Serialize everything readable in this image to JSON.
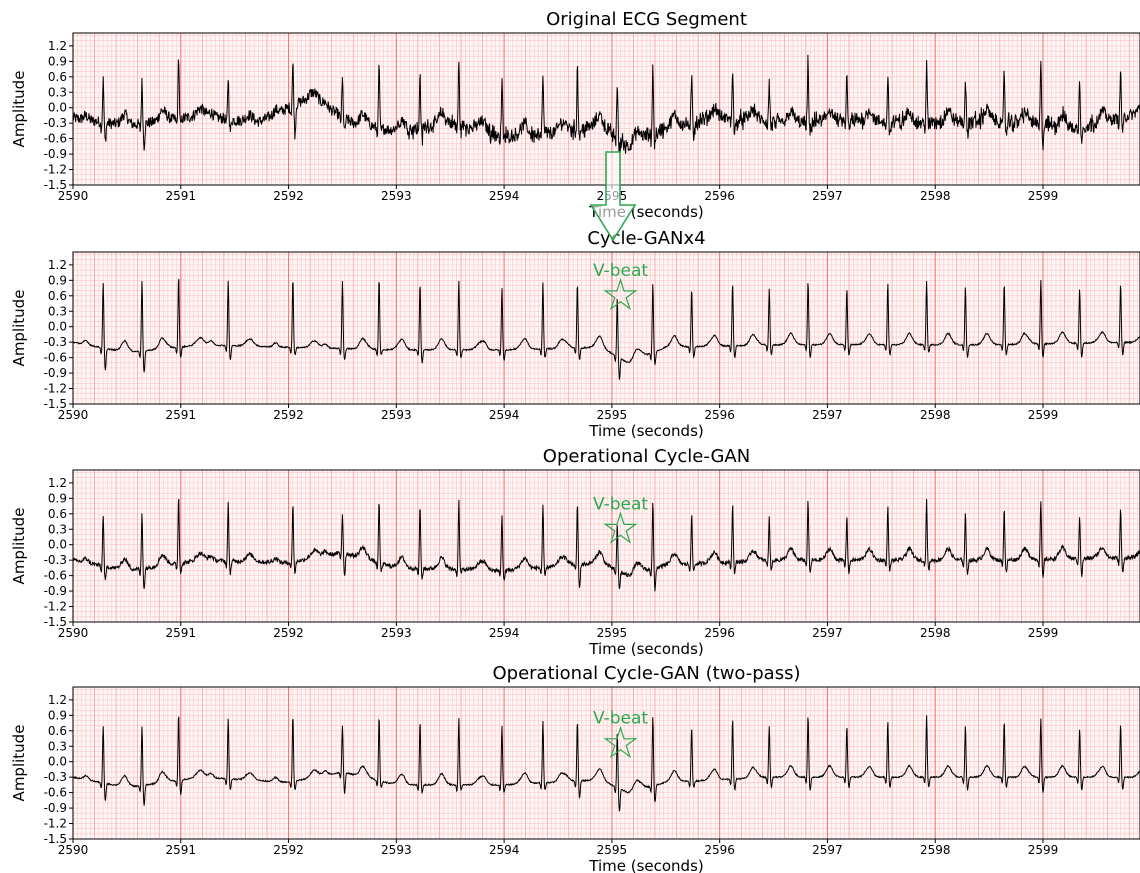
{
  "chart_data": [
    {
      "type": "line",
      "title": "Original ECG Segment",
      "xlabel": "Time (seconds)",
      "ylabel": "Amplitude",
      "xlim": [
        2590,
        2599.9
      ],
      "ylim": [
        -1.5,
        1.45
      ],
      "xticks": [
        "2590",
        "2591",
        "2592",
        "2593",
        "2594",
        "2595",
        "2596",
        "2597",
        "2598",
        "2599"
      ],
      "yticks": [
        "1.2",
        "0.9",
        "0.6",
        "0.3",
        "0.0",
        "-0.3",
        "-0.6",
        "-0.9",
        "-1.2",
        "-1.5"
      ],
      "grid": "ecg-paper",
      "noise": "high",
      "beats": [
        {
          "t": 2590.28,
          "r": 0.55,
          "s": -0.65
        },
        {
          "t": 2590.64,
          "r": 0.5,
          "s": -0.75
        },
        {
          "t": 2590.98,
          "r": 1.0,
          "s": -0.35
        },
        {
          "t": 2591.44,
          "r": 0.6,
          "s": -0.45
        },
        {
          "t": 2592.04,
          "r": 0.85,
          "s": -0.55
        },
        {
          "t": 2592.5,
          "r": 0.55,
          "s": -0.45
        },
        {
          "t": 2592.84,
          "r": 0.85,
          "s": -0.45
        },
        {
          "t": 2593.22,
          "r": 0.7,
          "s": -0.6
        },
        {
          "t": 2593.58,
          "r": 0.85,
          "s": -0.4
        },
        {
          "t": 2593.98,
          "r": 0.55,
          "s": -0.6
        },
        {
          "t": 2594.36,
          "r": 0.7,
          "s": -0.5
        },
        {
          "t": 2594.68,
          "r": 0.85,
          "s": -0.55
        },
        {
          "t": 2595.05,
          "r": 0.55,
          "s": -0.8
        },
        {
          "t": 2595.38,
          "r": 0.85,
          "s": -0.7
        },
        {
          "t": 2595.74,
          "r": 0.55,
          "s": -0.55
        },
        {
          "t": 2596.12,
          "r": 0.85,
          "s": -0.55
        },
        {
          "t": 2596.46,
          "r": 0.5,
          "s": -0.4
        },
        {
          "t": 2596.82,
          "r": 0.85,
          "s": -0.55
        },
        {
          "t": 2597.18,
          "r": 0.55,
          "s": -0.45
        },
        {
          "t": 2597.56,
          "r": 0.7,
          "s": -0.5
        },
        {
          "t": 2597.92,
          "r": 0.85,
          "s": -0.4
        },
        {
          "t": 2598.28,
          "r": 0.55,
          "s": -0.6
        },
        {
          "t": 2598.64,
          "r": 0.7,
          "s": -0.5
        },
        {
          "t": 2598.98,
          "r": 0.85,
          "s": -0.7
        },
        {
          "t": 2599.34,
          "r": 0.55,
          "s": -0.65
        },
        {
          "t": 2599.72,
          "r": 0.7,
          "s": -0.5
        }
      ],
      "baseline": [
        [
          2590,
          -0.2
        ],
        [
          2590.5,
          -0.35
        ],
        [
          2591.2,
          -0.15
        ],
        [
          2591.7,
          -0.3
        ],
        [
          2592.2,
          0.2
        ],
        [
          2592.6,
          -0.3
        ],
        [
          2593,
          -0.45
        ],
        [
          2593.5,
          -0.3
        ],
        [
          2594,
          -0.55
        ],
        [
          2594.4,
          -0.5
        ],
        [
          2594.9,
          -0.35
        ],
        [
          2595.15,
          -0.75
        ],
        [
          2595.5,
          -0.4
        ],
        [
          2596,
          -0.2
        ],
        [
          2596.6,
          -0.3
        ],
        [
          2597.2,
          -0.25
        ],
        [
          2597.8,
          -0.3
        ],
        [
          2598.4,
          -0.25
        ],
        [
          2598.9,
          -0.3
        ],
        [
          2599.3,
          -0.4
        ],
        [
          2599.9,
          -0.1
        ]
      ]
    },
    {
      "type": "line",
      "title": "Cycle-GANx4",
      "xlabel": "Time (seconds)",
      "ylabel": "Amplitude",
      "xlim": [
        2590,
        2599.9
      ],
      "ylim": [
        -1.5,
        1.45
      ],
      "xticks": [
        "2590",
        "2591",
        "2592",
        "2593",
        "2594",
        "2595",
        "2596",
        "2597",
        "2598",
        "2599"
      ],
      "yticks": [
        "1.2",
        "0.9",
        "0.6",
        "0.3",
        "0.0",
        "-0.3",
        "-0.6",
        "-0.9",
        "-1.2",
        "-1.5"
      ],
      "grid": "ecg-paper",
      "noise": "low",
      "annotation": {
        "label": "V-beat",
        "x": 2595.08,
        "y": 0.6
      },
      "beats": [
        {
          "t": 2590.28,
          "r": 0.85,
          "s": -0.85
        },
        {
          "t": 2590.64,
          "r": 0.9,
          "s": -0.9
        },
        {
          "t": 2590.98,
          "r": 1.0,
          "s": -0.6
        },
        {
          "t": 2591.44,
          "r": 0.9,
          "s": -0.65
        },
        {
          "t": 2592.04,
          "r": 0.95,
          "s": -0.55
        },
        {
          "t": 2592.5,
          "r": 0.9,
          "s": -0.65
        },
        {
          "t": 2592.84,
          "r": 0.95,
          "s": -0.55
        },
        {
          "t": 2593.22,
          "r": 0.85,
          "s": -0.7
        },
        {
          "t": 2593.58,
          "r": 0.9,
          "s": -0.6
        },
        {
          "t": 2593.98,
          "r": 0.75,
          "s": -0.65
        },
        {
          "t": 2594.36,
          "r": 0.85,
          "s": -0.6
        },
        {
          "t": 2594.68,
          "r": 0.85,
          "s": -0.65
        },
        {
          "t": 2595.05,
          "r": 0.55,
          "s": -1.0
        },
        {
          "t": 2595.38,
          "r": 0.85,
          "s": -0.75
        },
        {
          "t": 2595.74,
          "r": 0.75,
          "s": -0.6
        },
        {
          "t": 2596.12,
          "r": 0.85,
          "s": -0.6
        },
        {
          "t": 2596.46,
          "r": 0.75,
          "s": -0.55
        },
        {
          "t": 2596.82,
          "r": 0.9,
          "s": -0.6
        },
        {
          "t": 2597.18,
          "r": 0.75,
          "s": -0.55
        },
        {
          "t": 2597.56,
          "r": 0.85,
          "s": -0.55
        },
        {
          "t": 2597.92,
          "r": 0.9,
          "s": -0.5
        },
        {
          "t": 2598.28,
          "r": 0.8,
          "s": -0.6
        },
        {
          "t": 2598.64,
          "r": 0.85,
          "s": -0.55
        },
        {
          "t": 2598.98,
          "r": 0.9,
          "s": -0.6
        },
        {
          "t": 2599.34,
          "r": 0.75,
          "s": -0.6
        },
        {
          "t": 2599.72,
          "r": 0.85,
          "s": -0.55
        }
      ],
      "baseline": [
        [
          2590,
          -0.3
        ],
        [
          2590.5,
          -0.5
        ],
        [
          2591.2,
          -0.35
        ],
        [
          2592,
          -0.4
        ],
        [
          2593,
          -0.45
        ],
        [
          2594,
          -0.45
        ],
        [
          2594.9,
          -0.4
        ],
        [
          2595.15,
          -0.7
        ],
        [
          2595.5,
          -0.4
        ],
        [
          2596.5,
          -0.35
        ],
        [
          2597.5,
          -0.35
        ],
        [
          2598.5,
          -0.35
        ],
        [
          2599.9,
          -0.3
        ]
      ]
    },
    {
      "type": "line",
      "title": "Operational Cycle-GAN",
      "xlabel": "Time (seconds)",
      "ylabel": "Amplitude",
      "xlim": [
        2590,
        2599.9
      ],
      "ylim": [
        -1.5,
        1.45
      ],
      "xticks": [
        "2590",
        "2591",
        "2592",
        "2593",
        "2594",
        "2595",
        "2596",
        "2597",
        "2598",
        "2599"
      ],
      "yticks": [
        "1.2",
        "0.9",
        "0.6",
        "0.3",
        "0.0",
        "-0.3",
        "-0.6",
        "-0.9",
        "-1.2",
        "-1.5"
      ],
      "grid": "ecg-paper",
      "noise": "medium",
      "annotation": {
        "label": "V-beat",
        "x": 2595.08,
        "y": 0.3
      },
      "beats": [
        {
          "t": 2590.28,
          "r": 0.6,
          "s": -0.7
        },
        {
          "t": 2590.64,
          "r": 0.6,
          "s": -0.85
        },
        {
          "t": 2590.98,
          "r": 0.95,
          "s": -0.55
        },
        {
          "t": 2591.44,
          "r": 0.8,
          "s": -0.55
        },
        {
          "t": 2592.04,
          "r": 0.8,
          "s": -0.55
        },
        {
          "t": 2592.5,
          "r": 0.6,
          "s": -0.6
        },
        {
          "t": 2592.84,
          "r": 0.85,
          "s": -0.5
        },
        {
          "t": 2593.22,
          "r": 0.75,
          "s": -0.65
        },
        {
          "t": 2593.58,
          "r": 0.85,
          "s": -0.55
        },
        {
          "t": 2593.98,
          "r": 0.6,
          "s": -0.7
        },
        {
          "t": 2594.36,
          "r": 0.75,
          "s": -0.6
        },
        {
          "t": 2594.68,
          "r": 0.8,
          "s": -0.85
        },
        {
          "t": 2595.05,
          "r": 0.4,
          "s": -0.85
        },
        {
          "t": 2595.38,
          "r": 0.85,
          "s": -0.9
        },
        {
          "t": 2595.74,
          "r": 0.6,
          "s": -0.5
        },
        {
          "t": 2596.12,
          "r": 0.8,
          "s": -0.55
        },
        {
          "t": 2596.46,
          "r": 0.55,
          "s": -0.5
        },
        {
          "t": 2596.82,
          "r": 0.85,
          "s": -0.55
        },
        {
          "t": 2597.18,
          "r": 0.55,
          "s": -0.55
        },
        {
          "t": 2597.56,
          "r": 0.75,
          "s": -0.5
        },
        {
          "t": 2597.92,
          "r": 0.85,
          "s": -0.5
        },
        {
          "t": 2598.28,
          "r": 0.6,
          "s": -0.55
        },
        {
          "t": 2598.64,
          "r": 0.7,
          "s": -0.55
        },
        {
          "t": 2598.98,
          "r": 0.85,
          "s": -0.65
        },
        {
          "t": 2599.34,
          "r": 0.55,
          "s": -0.6
        },
        {
          "t": 2599.72,
          "r": 0.7,
          "s": -0.55
        }
      ],
      "baseline": [
        [
          2590,
          -0.3
        ],
        [
          2590.5,
          -0.5
        ],
        [
          2591.2,
          -0.3
        ],
        [
          2592,
          -0.35
        ],
        [
          2592.5,
          -0.15
        ],
        [
          2593,
          -0.45
        ],
        [
          2594,
          -0.5
        ],
        [
          2594.9,
          -0.35
        ],
        [
          2595.15,
          -0.6
        ],
        [
          2595.5,
          -0.4
        ],
        [
          2596.5,
          -0.3
        ],
        [
          2597.5,
          -0.3
        ],
        [
          2598.5,
          -0.3
        ],
        [
          2599.9,
          -0.25
        ]
      ]
    },
    {
      "type": "line",
      "title": "Operational Cycle-GAN (two-pass)",
      "xlabel": "Time (seconds)",
      "ylabel": "Amplitude",
      "xlim": [
        2590,
        2599.9
      ],
      "ylim": [
        -1.5,
        1.45
      ],
      "xticks": [
        "2590",
        "2591",
        "2592",
        "2593",
        "2594",
        "2595",
        "2596",
        "2597",
        "2598",
        "2599"
      ],
      "yticks": [
        "1.2",
        "0.9",
        "0.6",
        "0.3",
        "0.0",
        "-0.3",
        "-0.6",
        "-0.9",
        "-1.2",
        "-1.5"
      ],
      "grid": "ecg-paper",
      "noise": "low",
      "annotation": {
        "label": "V-beat",
        "x": 2595.08,
        "y": 0.35
      },
      "beats": [
        {
          "t": 2590.28,
          "r": 0.7,
          "s": -0.75
        },
        {
          "t": 2590.64,
          "r": 0.7,
          "s": -0.85
        },
        {
          "t": 2590.98,
          "r": 0.95,
          "s": -0.65
        },
        {
          "t": 2591.44,
          "r": 0.85,
          "s": -0.55
        },
        {
          "t": 2592.04,
          "r": 0.9,
          "s": -0.55
        },
        {
          "t": 2592.5,
          "r": 0.7,
          "s": -0.6
        },
        {
          "t": 2592.84,
          "r": 0.9,
          "s": -0.5
        },
        {
          "t": 2593.22,
          "r": 0.8,
          "s": -0.6
        },
        {
          "t": 2593.58,
          "r": 0.85,
          "s": -0.55
        },
        {
          "t": 2593.98,
          "r": 0.7,
          "s": -0.6
        },
        {
          "t": 2594.36,
          "r": 0.8,
          "s": -0.55
        },
        {
          "t": 2594.68,
          "r": 0.8,
          "s": -0.7
        },
        {
          "t": 2595.05,
          "r": 0.55,
          "s": -0.95
        },
        {
          "t": 2595.38,
          "r": 0.9,
          "s": -0.8
        },
        {
          "t": 2595.74,
          "r": 0.7,
          "s": -0.5
        },
        {
          "t": 2596.12,
          "r": 0.85,
          "s": -0.55
        },
        {
          "t": 2596.46,
          "r": 0.7,
          "s": -0.5
        },
        {
          "t": 2596.82,
          "r": 0.9,
          "s": -0.55
        },
        {
          "t": 2597.18,
          "r": 0.7,
          "s": -0.5
        },
        {
          "t": 2597.56,
          "r": 0.8,
          "s": -0.5
        },
        {
          "t": 2597.92,
          "r": 0.9,
          "s": -0.5
        },
        {
          "t": 2598.28,
          "r": 0.7,
          "s": -0.55
        },
        {
          "t": 2598.64,
          "r": 0.8,
          "s": -0.5
        },
        {
          "t": 2598.98,
          "r": 0.85,
          "s": -0.6
        },
        {
          "t": 2599.34,
          "r": 0.65,
          "s": -0.55
        },
        {
          "t": 2599.72,
          "r": 0.75,
          "s": -0.55
        }
      ],
      "baseline": [
        [
          2590,
          -0.3
        ],
        [
          2590.5,
          -0.5
        ],
        [
          2591.2,
          -0.3
        ],
        [
          2592,
          -0.4
        ],
        [
          2592.5,
          -0.2
        ],
        [
          2593,
          -0.45
        ],
        [
          2594,
          -0.45
        ],
        [
          2594.9,
          -0.35
        ],
        [
          2595.15,
          -0.6
        ],
        [
          2595.5,
          -0.4
        ],
        [
          2596.5,
          -0.3
        ],
        [
          2597.5,
          -0.3
        ],
        [
          2598.5,
          -0.3
        ],
        [
          2599.9,
          -0.3
        ]
      ]
    }
  ],
  "colors": {
    "grid_major": "#f47b7b",
    "grid_minor": "#f9c8c8",
    "paper": "#fff5f5",
    "signal": "#000000",
    "annotation": "#2ea84f",
    "arrow": "#2ea84f"
  },
  "icons": {
    "vbeat_marker": "star-icon",
    "transition": "arrow-down-icon"
  }
}
